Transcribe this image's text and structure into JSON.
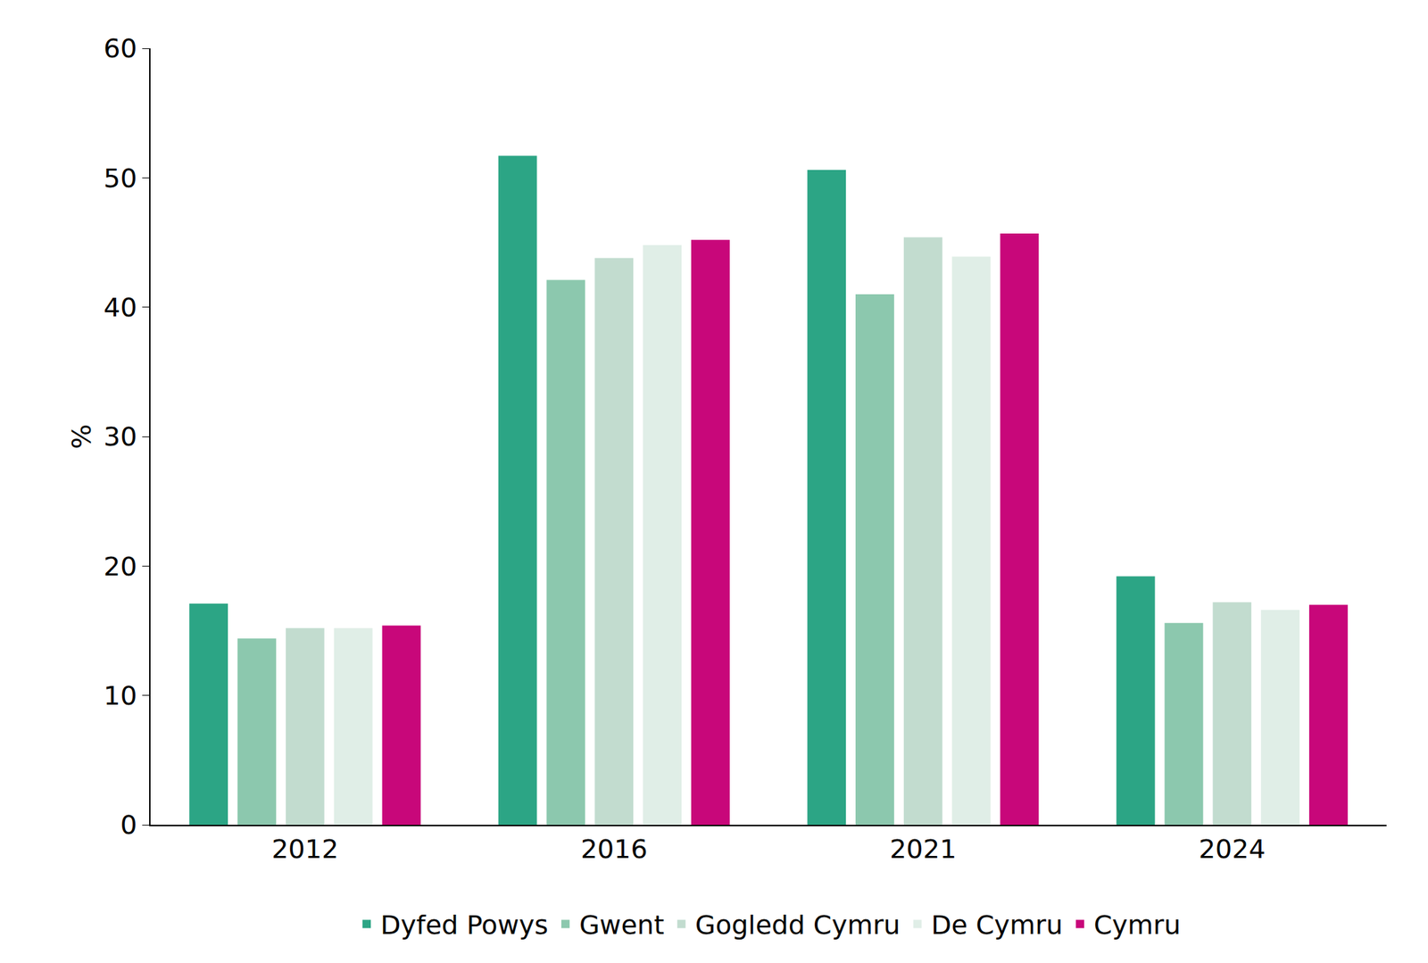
{
  "chart_data": {
    "type": "bar",
    "y_label": "%",
    "categories": [
      "2012",
      "2016",
      "2021",
      "2024"
    ],
    "series": [
      {
        "name": "Dyfed Powys",
        "color": "#2ca585",
        "values": [
          17.1,
          51.7,
          50.6,
          19.2
        ]
      },
      {
        "name": "Gwent",
        "color": "#8cc8ae",
        "values": [
          14.4,
          42.1,
          41.0,
          15.6
        ]
      },
      {
        "name": "Gogledd Cymru",
        "color": "#c2dccf",
        "values": [
          15.2,
          43.8,
          45.4,
          17.2
        ]
      },
      {
        "name": "De Cymru",
        "color": "#e0eee7",
        "values": [
          15.2,
          44.8,
          43.9,
          16.6
        ]
      },
      {
        "name": "Cymru",
        "color": "#c8077a",
        "values": [
          15.4,
          45.2,
          45.7,
          17.0
        ]
      }
    ],
    "ylim": [
      0,
      60
    ],
    "yticks": [
      0,
      10,
      20,
      30,
      40,
      50,
      60
    ],
    "grid": false,
    "legend": "bottom"
  }
}
